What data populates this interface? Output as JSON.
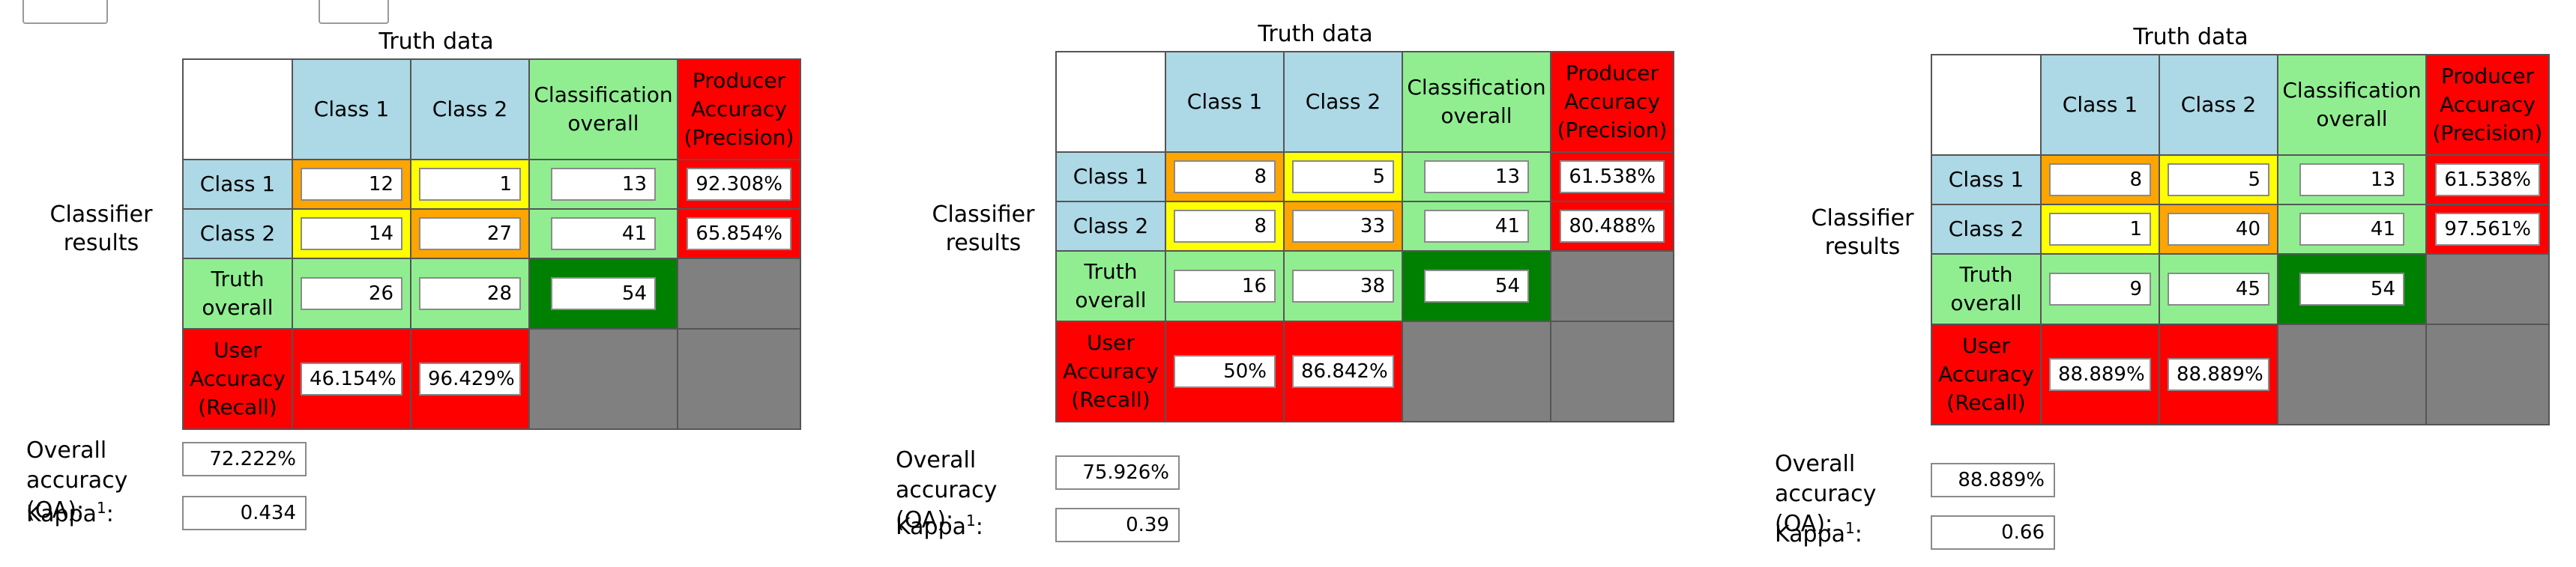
{
  "labels": {
    "truth_data": "Truth data",
    "classifier_results": "Classifier results",
    "class_1": "Class 1",
    "class_2": "Class 2",
    "classification_overall": "Classification overall",
    "producer_accuracy": "Producer Accuracy (Precision)",
    "truth_overall": "Truth overall",
    "user_accuracy": "User Accuracy (Recall)",
    "overall_accuracy": "Overall accuracy (OA):",
    "kappa": "Kappa",
    "kappa_sup": "1",
    "kappa_colon": ":"
  },
  "colors": {
    "header_blue": "#add8e6",
    "overall_green": "#90ee90",
    "accuracy_red": "#ff0000",
    "diagonal_orange": "#ffa500",
    "offdiag_yellow": "#ffff00",
    "empty_gray": "#808080",
    "total_dark_green": "#008000"
  },
  "matrices": [
    {
      "cells": {
        "r1c1": "12",
        "r1c2": "1",
        "r1_total": "13",
        "r1_precision": "92.308%",
        "r2c1": "14",
        "r2c2": "27",
        "r2_total": "41",
        "r2_precision": "65.854%",
        "truth_c1": "26",
        "truth_c2": "28",
        "grand_total": "54",
        "recall_c1": "46.154%",
        "recall_c2": "96.429%"
      },
      "overall_accuracy": "72.222%",
      "kappa": "0.434"
    },
    {
      "cells": {
        "r1c1": "8",
        "r1c2": "5",
        "r1_total": "13",
        "r1_precision": "61.538%",
        "r2c1": "8",
        "r2c2": "33",
        "r2_total": "41",
        "r2_precision": "80.488%",
        "truth_c1": "16",
        "truth_c2": "38",
        "grand_total": "54",
        "recall_c1": "50%",
        "recall_c2": "86.842%"
      },
      "overall_accuracy": "75.926%",
      "kappa": "0.39"
    },
    {
      "cells": {
        "r1c1": "8",
        "r1c2": "5",
        "r1_total": "13",
        "r1_precision": "61.538%",
        "r2c1": "1",
        "r2c2": "40",
        "r2_total": "41",
        "r2_precision": "97.561%",
        "truth_c1": "9",
        "truth_c2": "45",
        "grand_total": "54",
        "recall_c1": "88.889%",
        "recall_c2": "88.889%"
      },
      "overall_accuracy": "88.889%",
      "kappa": "0.66"
    }
  ]
}
